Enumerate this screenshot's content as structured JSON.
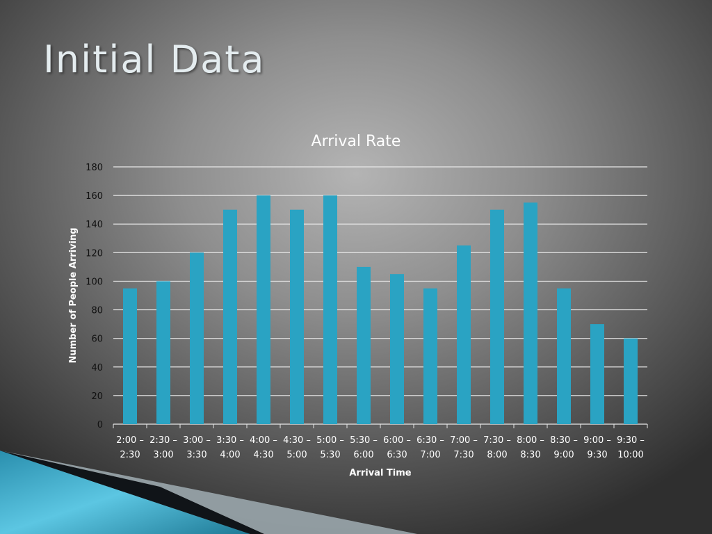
{
  "slide": {
    "title": "Initial Data"
  },
  "colors": {
    "bar": "#2aa3c3",
    "grid": "#e8e8e8",
    "text": "#ffffff",
    "axis_text": "#111111"
  },
  "chart_data": {
    "type": "bar",
    "title": "Arrival Rate",
    "xlabel": "Arrival Time",
    "ylabel": "Number of People Arriving",
    "ylim": [
      0,
      180
    ],
    "yticks": [
      0,
      20,
      40,
      60,
      80,
      100,
      120,
      140,
      160,
      180
    ],
    "grid": true,
    "legend": "none",
    "categories": [
      [
        "2:00 –",
        "2:30"
      ],
      [
        "2:30 –",
        "3:00"
      ],
      [
        "3:00 –",
        "3:30"
      ],
      [
        "3:30 –",
        "4:00"
      ],
      [
        "4:00 –",
        "4:30"
      ],
      [
        "4:30 –",
        "5:00"
      ],
      [
        "5:00 –",
        "5:30"
      ],
      [
        "5:30 –",
        "6:00"
      ],
      [
        "6:00 –",
        "6:30"
      ],
      [
        "6:30 –",
        "7:00"
      ],
      [
        "7:00 –",
        "7:30"
      ],
      [
        "7:30 –",
        "8:00"
      ],
      [
        "8:00 –",
        "8:30"
      ],
      [
        "8:30 –",
        "9:00"
      ],
      [
        "9:00 –",
        "9:30"
      ],
      [
        "9:30 –",
        "10:00"
      ]
    ],
    "values": [
      95,
      100,
      120,
      150,
      160,
      150,
      160,
      110,
      105,
      95,
      125,
      150,
      155,
      95,
      70,
      60
    ]
  }
}
